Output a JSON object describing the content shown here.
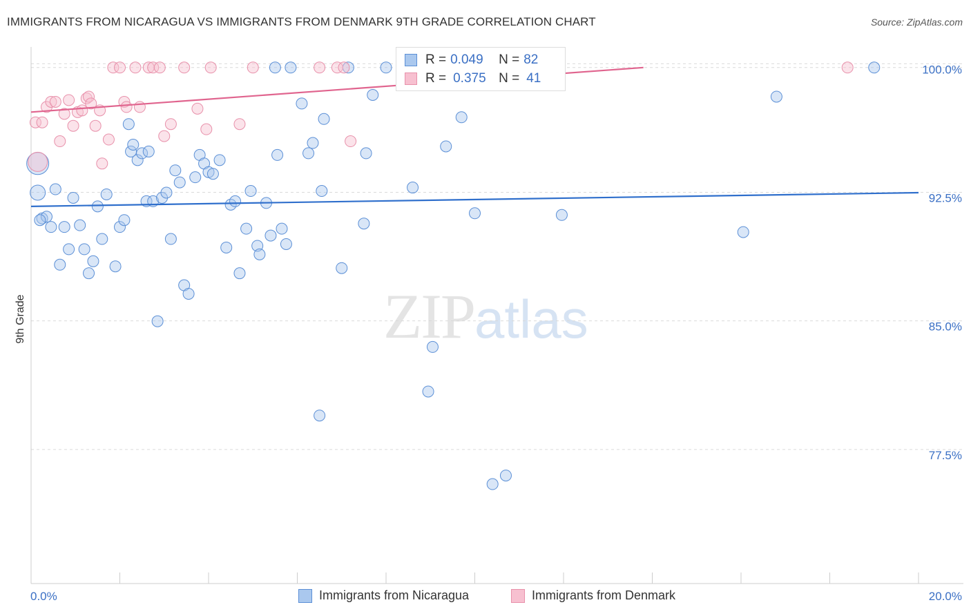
{
  "header": {
    "title": "IMMIGRANTS FROM NICARAGUA VS IMMIGRANTS FROM DENMARK 9TH GRADE CORRELATION CHART",
    "source": "Source: ZipAtlas.com"
  },
  "watermark": {
    "zip": "ZIP",
    "atlas": "atlas"
  },
  "legend": {
    "rows": [
      {
        "r_label": "R = ",
        "r_value": "0.049",
        "n_label": "N = ",
        "n_value": "82",
        "color": "#aac8ee",
        "border": "#5b8fd6"
      },
      {
        "r_label": "R = ",
        "r_value": "0.375",
        "n_label": "N = ",
        "n_value": "41",
        "color": "#f7c0d0",
        "border": "#e890aa"
      }
    ]
  },
  "bottom_legend": {
    "items": [
      {
        "label": "Immigrants from Nicaragua",
        "color": "#aac8ee",
        "border": "#5b8fd6"
      },
      {
        "label": "Immigrants from Denmark",
        "color": "#f7c0d0",
        "border": "#e890aa"
      }
    ]
  },
  "chart_data": {
    "type": "scatter",
    "title": "IMMIGRANTS FROM NICARAGUA VS IMMIGRANTS FROM DENMARK 9TH GRADE CORRELATION CHART",
    "xlabel": "",
    "ylabel": "9th Grade",
    "xlim": [
      0,
      20
    ],
    "ylim": [
      70.0,
      101.3
    ],
    "x_tick_labels": [
      "0.0%",
      "20.0%"
    ],
    "y_ticks": [
      77.5,
      85.0,
      92.5,
      100.0
    ],
    "y_tick_labels": [
      "77.5%",
      "85.0%",
      "92.5%",
      "100.0%"
    ],
    "grid": "horizontal dashed",
    "series": [
      {
        "name": "Immigrants from Nicaragua",
        "color": "#5b8fd6",
        "fill": "rgba(170,200,238,0.45)",
        "trend": {
          "x": [
            0,
            20
          ],
          "y": [
            92.0,
            92.8
          ]
        },
        "points": [
          [
            0.15,
            94.5,
            16
          ],
          [
            0.15,
            92.8,
            11
          ],
          [
            0.25,
            91.3,
            8
          ],
          [
            0.35,
            91.4,
            8
          ],
          [
            0.45,
            90.8,
            8
          ],
          [
            0.55,
            93.0,
            8
          ],
          [
            0.65,
            88.6,
            8
          ],
          [
            0.75,
            90.8,
            8
          ],
          [
            0.85,
            89.5,
            8
          ],
          [
            0.95,
            92.5,
            8
          ],
          [
            1.1,
            90.9,
            8
          ],
          [
            1.2,
            89.5,
            8
          ],
          [
            1.3,
            88.1,
            8
          ],
          [
            1.4,
            88.8,
            8
          ],
          [
            1.5,
            92.0,
            8
          ],
          [
            1.6,
            90.1,
            8
          ],
          [
            1.7,
            92.7,
            8
          ],
          [
            1.9,
            88.5,
            8
          ],
          [
            2.0,
            90.8,
            8
          ],
          [
            2.1,
            91.2,
            8
          ],
          [
            2.2,
            96.8,
            8
          ],
          [
            2.25,
            95.2,
            8
          ],
          [
            2.3,
            95.6,
            8
          ],
          [
            2.4,
            94.7,
            8
          ],
          [
            2.5,
            95.1,
            8
          ],
          [
            2.6,
            92.3,
            8
          ],
          [
            2.65,
            95.2,
            8
          ],
          [
            2.75,
            92.3,
            8
          ],
          [
            2.85,
            85.3,
            8
          ],
          [
            2.95,
            92.5,
            8
          ],
          [
            3.05,
            92.8,
            8
          ],
          [
            3.15,
            90.1,
            8
          ],
          [
            3.25,
            94.1,
            8
          ],
          [
            3.35,
            93.4,
            8
          ],
          [
            3.45,
            87.4,
            8
          ],
          [
            3.55,
            86.9,
            8
          ],
          [
            3.7,
            93.7,
            8
          ],
          [
            3.8,
            95.0,
            8
          ],
          [
            3.9,
            94.5,
            8
          ],
          [
            4.0,
            94.0,
            8
          ],
          [
            4.1,
            93.9,
            8
          ],
          [
            4.25,
            94.7,
            8
          ],
          [
            4.4,
            89.6,
            8
          ],
          [
            4.5,
            92.1,
            8
          ],
          [
            4.6,
            92.3,
            8
          ],
          [
            4.7,
            88.1,
            8
          ],
          [
            4.85,
            90.7,
            8
          ],
          [
            4.95,
            92.9,
            8
          ],
          [
            5.1,
            89.7,
            8
          ],
          [
            5.15,
            89.2,
            8
          ],
          [
            5.3,
            92.2,
            8
          ],
          [
            5.4,
            90.3,
            8
          ],
          [
            5.55,
            95.0,
            8
          ],
          [
            5.65,
            90.7,
            8
          ],
          [
            5.75,
            89.8,
            8
          ],
          [
            5.5,
            100.1,
            8
          ],
          [
            5.85,
            100.1,
            8
          ],
          [
            6.1,
            98.0,
            8
          ],
          [
            6.25,
            95.1,
            8
          ],
          [
            6.35,
            95.7,
            8
          ],
          [
            6.5,
            79.8,
            8
          ],
          [
            6.55,
            92.9,
            8
          ],
          [
            6.6,
            97.1,
            8
          ],
          [
            7.0,
            88.4,
            8
          ],
          [
            7.15,
            100.1,
            8
          ],
          [
            7.5,
            91.0,
            8
          ],
          [
            7.55,
            95.1,
            8
          ],
          [
            7.7,
            98.5,
            8
          ],
          [
            8.0,
            100.1,
            8
          ],
          [
            8.6,
            93.1,
            8
          ],
          [
            8.95,
            81.2,
            8
          ],
          [
            9.05,
            83.8,
            8
          ],
          [
            9.35,
            95.5,
            8
          ],
          [
            9.7,
            97.2,
            8
          ],
          [
            10.0,
            91.6,
            8
          ],
          [
            10.4,
            75.8,
            8
          ],
          [
            10.7,
            76.3,
            8
          ],
          [
            11.96,
            91.5,
            8
          ],
          [
            16.05,
            90.5,
            8
          ],
          [
            16.8,
            98.4,
            8
          ],
          [
            19.0,
            100.1,
            8
          ],
          [
            0.2,
            91.2,
            8
          ]
        ]
      },
      {
        "name": "Immigrants from Denmark",
        "color": "#e890aa",
        "fill": "rgba(247,192,208,0.45)",
        "trend": {
          "x": [
            0,
            13.8
          ],
          "y": [
            97.5,
            100.1
          ]
        },
        "points": [
          [
            0.1,
            96.9,
            8
          ],
          [
            0.25,
            96.9,
            8
          ],
          [
            0.35,
            97.8,
            8
          ],
          [
            0.45,
            98.1,
            8
          ],
          [
            0.55,
            98.1,
            8
          ],
          [
            0.65,
            95.8,
            8
          ],
          [
            0.75,
            97.4,
            8
          ],
          [
            0.85,
            98.2,
            8
          ],
          [
            0.95,
            96.7,
            8
          ],
          [
            1.05,
            97.5,
            8
          ],
          [
            1.15,
            97.6,
            8
          ],
          [
            1.25,
            98.3,
            8
          ],
          [
            1.3,
            98.4,
            8
          ],
          [
            1.35,
            98.0,
            8
          ],
          [
            1.45,
            96.7,
            8
          ],
          [
            1.55,
            97.6,
            8
          ],
          [
            1.6,
            94.5,
            8
          ],
          [
            1.75,
            95.9,
            8
          ],
          [
            1.85,
            100.1,
            8
          ],
          [
            2.0,
            100.1,
            8
          ],
          [
            2.1,
            98.1,
            8
          ],
          [
            2.15,
            97.8,
            8
          ],
          [
            2.35,
            100.1,
            8
          ],
          [
            2.45,
            97.8,
            8
          ],
          [
            2.65,
            100.1,
            8
          ],
          [
            2.75,
            100.1,
            8
          ],
          [
            2.9,
            100.1,
            8
          ],
          [
            3.0,
            96.1,
            8
          ],
          [
            3.15,
            96.8,
            8
          ],
          [
            3.45,
            100.1,
            8
          ],
          [
            3.75,
            97.7,
            8
          ],
          [
            3.95,
            96.5,
            8
          ],
          [
            4.05,
            100.1,
            8
          ],
          [
            4.7,
            96.8,
            8
          ],
          [
            5.0,
            100.1,
            8
          ],
          [
            6.5,
            100.1,
            8
          ],
          [
            6.9,
            100.1,
            8
          ],
          [
            7.05,
            100.1,
            8
          ],
          [
            7.2,
            95.8,
            8
          ],
          [
            18.4,
            100.1,
            8
          ],
          [
            0.15,
            94.6,
            14
          ]
        ]
      }
    ]
  }
}
